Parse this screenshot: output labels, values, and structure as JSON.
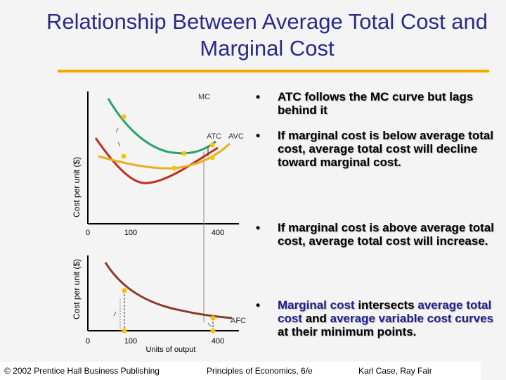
{
  "title": "Relationship Between Average Total Cost and Marginal Cost",
  "colors": {
    "title": "#2a2a8a",
    "accent_line": "#f0a800",
    "mc_curve": "#27a36a",
    "atc_curve": "#e8b020",
    "avc_curve": "#c03020",
    "afc_curve": "#8b3a2a",
    "point": "#f4c400",
    "highlight_text": "#1f1f8e"
  },
  "bullets": [
    {
      "marker": "•",
      "text": "ATC follows the MC curve but lags behind it"
    },
    {
      "marker": "•",
      "text": "If marginal cost is below average total cost, average total cost will decline toward marginal cost."
    },
    {
      "marker": "•",
      "text": "If marginal cost is above average total cost, average total cost will increase."
    },
    {
      "marker": "•",
      "parts": [
        {
          "text": "Marginal cost",
          "highlight": true
        },
        {
          "text": " intersects ",
          "highlight": false
        },
        {
          "text": "average total cost",
          "highlight": true
        },
        {
          "text": " and ",
          "highlight": false
        },
        {
          "text": "average variable cost curves",
          "highlight": true
        },
        {
          "text": " at their minimum points.",
          "highlight": false
        }
      ]
    }
  ],
  "top_graph": {
    "ylabel": "Cost per unit ($)",
    "origin_label": "0",
    "x_ticks": [
      "100",
      "400"
    ],
    "curve_labels": {
      "mc": "MC",
      "atc": "ATC",
      "avc": "AVC"
    }
  },
  "bottom_graph": {
    "ylabel": "Cost per unit ($)",
    "origin_label": "0",
    "x_ticks": [
      "100",
      "400"
    ],
    "xlabel": "Units of output",
    "curve_labels": {
      "afc": "AFC"
    }
  },
  "footer": {
    "left": "© 2002 Prentice Hall Business Publishing",
    "center": "Principles of Economics, 6/e",
    "right": "Karl Case, Ray Fair"
  }
}
